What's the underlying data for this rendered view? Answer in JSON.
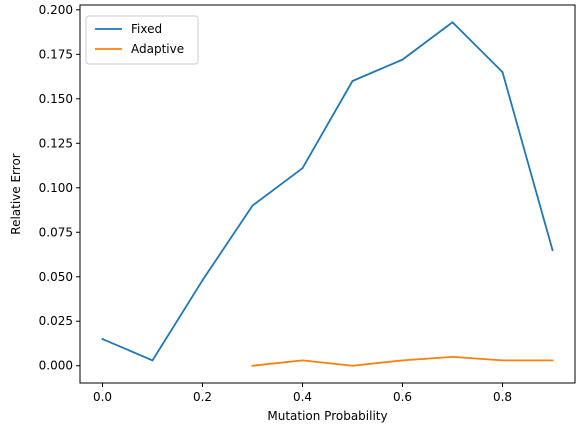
{
  "chart_data": {
    "type": "line",
    "title": "",
    "xlabel": "Mutation Probability",
    "ylabel": "Relative Error",
    "xlim": [
      -0.045,
      0.945
    ],
    "ylim": [
      -0.0097,
      0.2027
    ],
    "x_ticks": [
      0.0,
      0.2,
      0.4,
      0.6,
      0.8
    ],
    "x_tick_labels": [
      "0.0",
      "0.2",
      "0.4",
      "0.6",
      "0.8"
    ],
    "y_ticks": [
      0.0,
      0.025,
      0.05,
      0.075,
      0.1,
      0.125,
      0.15,
      0.175,
      0.2
    ],
    "y_tick_labels": [
      "0.000",
      "0.025",
      "0.050",
      "0.075",
      "0.100",
      "0.125",
      "0.150",
      "0.175",
      "0.200"
    ],
    "grid": false,
    "legend_position": "top-left",
    "series": [
      {
        "name": "Fixed",
        "color": "#1f77b4",
        "x": [
          0.0,
          0.1,
          0.2,
          0.3,
          0.4,
          0.5,
          0.6,
          0.7,
          0.8,
          0.9
        ],
        "y": [
          0.015,
          0.003,
          0.048,
          0.09,
          0.111,
          0.16,
          0.172,
          0.193,
          0.165,
          0.065
        ]
      },
      {
        "name": "Adaptive",
        "color": "#ff7f0e",
        "x": [
          0.3,
          0.4,
          0.5,
          0.6,
          0.7,
          0.8,
          0.9
        ],
        "y": [
          0.0,
          0.003,
          0.0,
          0.003,
          0.005,
          0.003,
          0.003
        ]
      }
    ]
  }
}
